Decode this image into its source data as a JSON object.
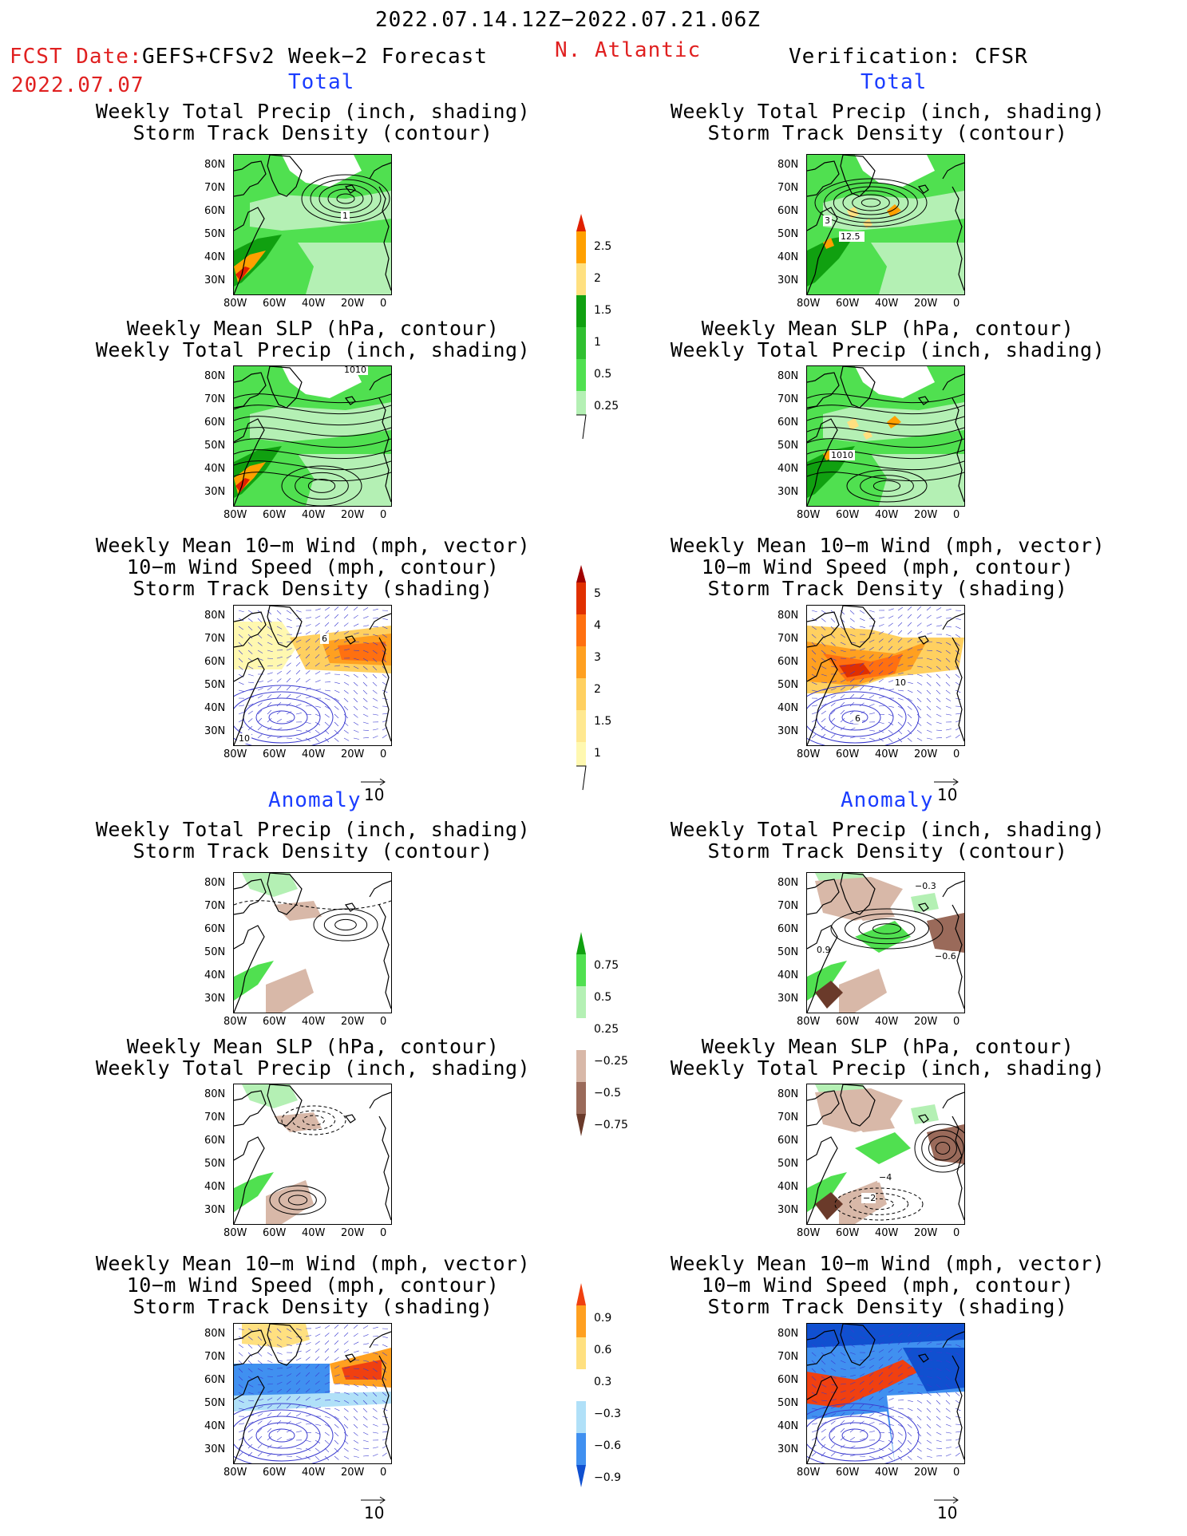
{
  "header": {
    "period": "2022.07.14.12Z−2022.07.21.06Z",
    "fcst_label": "FCST Date:",
    "model": "GEFS+CFSv2 Week−2 Forecast",
    "fcst_date": "2022.07.07",
    "region": "N. Atlantic",
    "verification": "Verification: CFSR"
  },
  "sections": {
    "total": "Total",
    "anomaly": "Anomaly"
  },
  "titles": {
    "precip_track": [
      "Weekly Total Precip (inch, shading)",
      "Storm Track Density (contour)"
    ],
    "slp_precip": [
      "Weekly Mean SLP (hPa, contour)",
      "Weekly Total Precip (inch, shading)"
    ],
    "wind_track": [
      "Weekly Mean 10−m Wind (mph, vector)",
      "10−m Wind Speed (mph, contour)",
      "Storm Track Density (shading)"
    ]
  },
  "axes": {
    "lat_ticks": [
      "80N",
      "70N",
      "60N",
      "50N",
      "40N",
      "30N"
    ],
    "lon_ticks": [
      "80W",
      "60W",
      "40W",
      "20W",
      "0"
    ]
  },
  "vector_reference": "10",
  "colorbars": {
    "total_precip": [
      "2.5",
      "2",
      "1.5",
      "1",
      "0.5",
      "0.25"
    ],
    "total_track": [
      "5",
      "4",
      "3",
      "2",
      "1.5",
      "1"
    ],
    "anom_precip": [
      "0.75",
      "0.5",
      "0.25",
      "−0.25",
      "−0.5",
      "−0.75"
    ],
    "anom_track": [
      "0.9",
      "0.6",
      "0.3",
      "−0.3",
      "−0.6",
      "−0.9"
    ]
  },
  "contour_labels": {
    "fcst_total_track": "1",
    "obs_total_track_a": "3",
    "obs_total_track_b": "12.5",
    "fcst_total_slp": "1010",
    "obs_total_slp": "1010",
    "obs_total_wind_a": "10",
    "obs_total_wind_b": "6",
    "fcst_total_wind_a": "6",
    "fcst_total_wind_b": "10",
    "obs_anom_track_a": "0.9",
    "obs_anom_track_b": "−0.6",
    "obs_anom_track_c": "−0.3",
    "obs_anom_slp_a": "−2",
    "obs_anom_slp_b": "−4"
  },
  "colors": {
    "header_red": "#e02020",
    "section_blue": "#1a3cff",
    "precip": [
      "#b4f0b4",
      "#50e050",
      "#30c030",
      "#10a010",
      "#ffe080",
      "#ffa000",
      "#e02000"
    ],
    "track": [
      "#fff8b0",
      "#ffd060",
      "#ffa020",
      "#ff7010",
      "#e03000",
      "#a00000"
    ],
    "anom_precip": [
      "#6a3a2a",
      "#9a6a5a",
      "#d8b8a8",
      "#ffffff",
      "#b4f0b4",
      "#50e050",
      "#10a010"
    ],
    "anom_track": [
      "#1050d0",
      "#4090f0",
      "#b0e0f8",
      "#ffffff",
      "#ffe080",
      "#ffa020",
      "#f04010"
    ]
  }
}
